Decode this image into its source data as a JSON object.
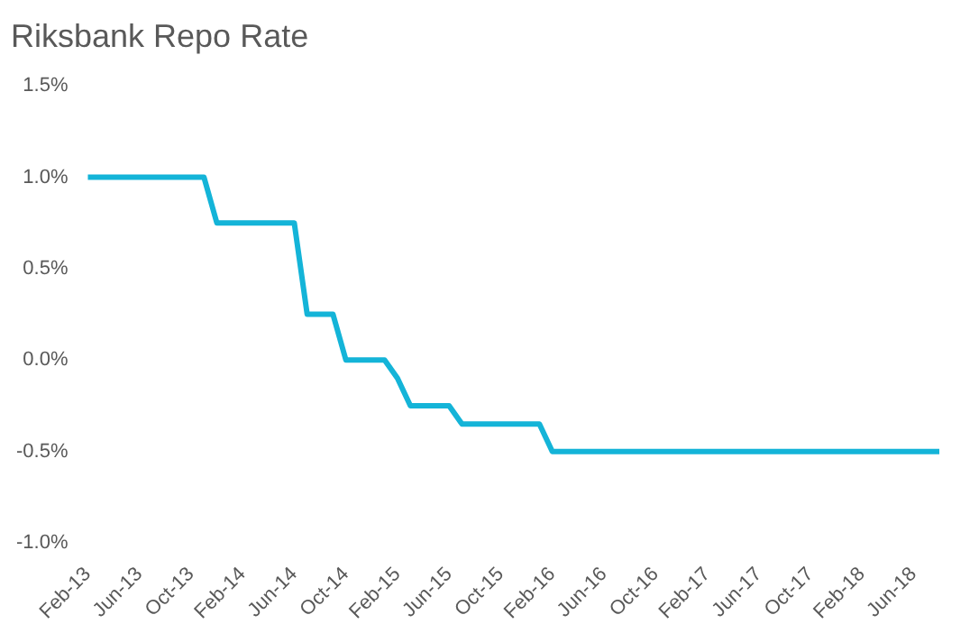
{
  "chart_data": {
    "type": "line",
    "title": "Riksbank Repo Rate",
    "categories": [
      "Feb-13",
      null,
      null,
      null,
      "Jun-13",
      null,
      null,
      null,
      "Oct-13",
      null,
      null,
      null,
      "Feb-14",
      null,
      null,
      null,
      "Jun-14",
      null,
      null,
      null,
      "Oct-14",
      null,
      null,
      null,
      "Feb-15",
      null,
      null,
      null,
      "Jun-15",
      null,
      null,
      null,
      "Oct-15",
      null,
      null,
      null,
      "Feb-16",
      null,
      null,
      null,
      "Jun-16",
      null,
      null,
      null,
      "Oct-16",
      null,
      null,
      null,
      "Feb-17",
      null,
      null,
      null,
      "Jun-17",
      null,
      null,
      null,
      "Oct-17",
      null,
      null,
      null,
      "Feb-18",
      null,
      null,
      null,
      "Jun-18",
      null,
      null
    ],
    "series": [
      {
        "color": "#14b4d8",
        "values": [
          1,
          1,
          1,
          1,
          1,
          1,
          1,
          1,
          1,
          1,
          0.75,
          0.75,
          0.75,
          0.75,
          0.75,
          0.75,
          0.75,
          0.25,
          0.25,
          0.25,
          0,
          0,
          0,
          0,
          -0.1,
          -0.25,
          -0.25,
          -0.25,
          -0.25,
          -0.35,
          -0.35,
          -0.35,
          -0.35,
          -0.35,
          -0.35,
          -0.35,
          -0.5,
          -0.5,
          -0.5,
          -0.5,
          -0.5,
          -0.5,
          -0.5,
          -0.5,
          -0.5,
          -0.5,
          -0.5,
          -0.5,
          -0.5,
          -0.5,
          -0.5,
          -0.5,
          -0.5,
          -0.5,
          -0.5,
          -0.5,
          -0.5,
          -0.5,
          -0.5,
          -0.5,
          -0.5,
          -0.5,
          -0.5,
          -0.5,
          -0.5,
          -0.5,
          -0.5
        ]
      }
    ],
    "ylim": [
      -1,
      1.5
    ],
    "yticks": [
      {
        "value": -1,
        "label": "-1.0%"
      },
      {
        "value": -0.5,
        "label": "-0.5%"
      },
      {
        "value": 0,
        "label": "0.0%"
      },
      {
        "value": 0.5,
        "label": "0.5%"
      },
      {
        "value": 1,
        "label": "1.0%"
      },
      {
        "value": 1.5,
        "label": "1.5%"
      }
    ],
    "grid": false,
    "legend": false,
    "marker": "none",
    "line_style": "solid"
  }
}
